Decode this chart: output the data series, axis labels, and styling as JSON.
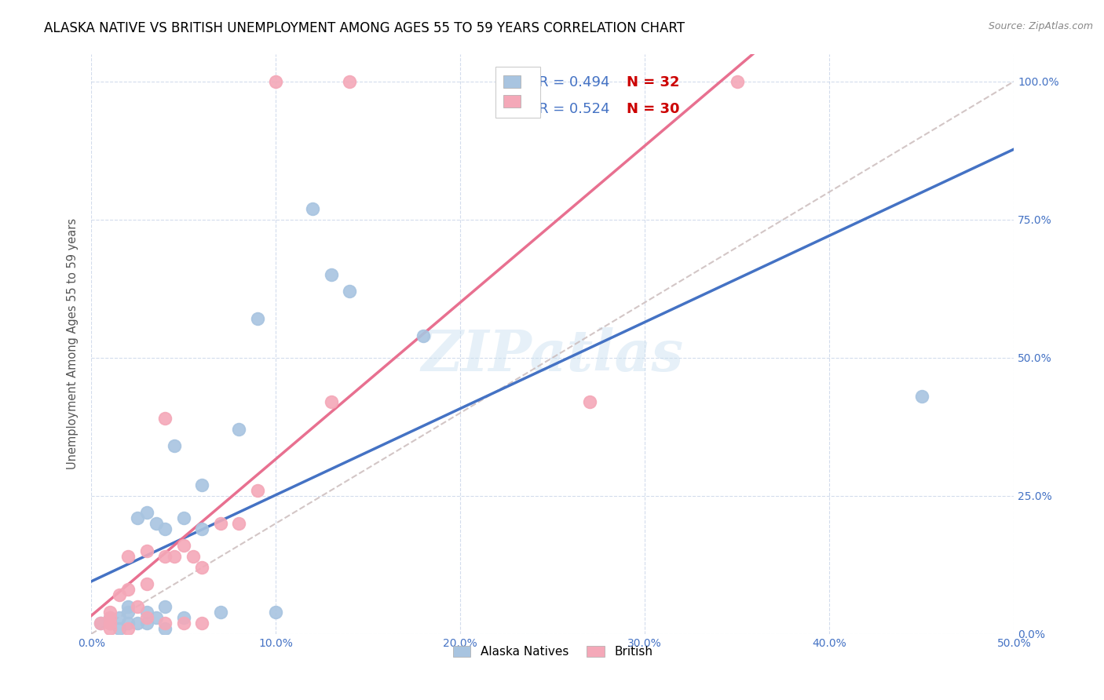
{
  "title": "ALASKA NATIVE VS BRITISH UNEMPLOYMENT AMONG AGES 55 TO 59 YEARS CORRELATION CHART",
  "source": "Source: ZipAtlas.com",
  "ylabel": "Unemployment Among Ages 55 to 59 years",
  "xlim": [
    0.0,
    0.5
  ],
  "ylim": [
    0.0,
    1.05
  ],
  "x_ticks": [
    0.0,
    0.1,
    0.2,
    0.3,
    0.4,
    0.5
  ],
  "x_tick_labels": [
    "0.0%",
    "10.0%",
    "20.0%",
    "30.0%",
    "40.0%",
    "50.0%"
  ],
  "y_ticks": [
    0.0,
    0.25,
    0.5,
    0.75,
    1.0
  ],
  "y_tick_labels": [
    "0.0%",
    "25.0%",
    "50.0%",
    "75.0%",
    "100.0%"
  ],
  "alaska_color": "#a8c4e0",
  "british_color": "#f4a8b8",
  "alaska_R": 0.494,
  "alaska_N": 32,
  "british_R": 0.524,
  "british_N": 30,
  "regression_blue": "#4472c4",
  "regression_pink": "#e87090",
  "diagonal_color": "#c8b8b8",
  "watermark": "ZIPatlas",
  "alaska_x": [
    0.005,
    0.01,
    0.01,
    0.015,
    0.015,
    0.02,
    0.02,
    0.02,
    0.025,
    0.025,
    0.03,
    0.03,
    0.03,
    0.035,
    0.035,
    0.04,
    0.04,
    0.04,
    0.045,
    0.05,
    0.05,
    0.06,
    0.06,
    0.07,
    0.08,
    0.09,
    0.1,
    0.12,
    0.13,
    0.14,
    0.18,
    0.45
  ],
  "alaska_y": [
    0.02,
    0.02,
    0.03,
    0.01,
    0.03,
    0.02,
    0.04,
    0.05,
    0.02,
    0.21,
    0.02,
    0.04,
    0.22,
    0.03,
    0.2,
    0.01,
    0.05,
    0.19,
    0.34,
    0.03,
    0.21,
    0.19,
    0.27,
    0.04,
    0.37,
    0.57,
    0.04,
    0.77,
    0.65,
    0.62,
    0.54,
    0.43
  ],
  "british_x": [
    0.005,
    0.01,
    0.01,
    0.01,
    0.01,
    0.015,
    0.02,
    0.02,
    0.02,
    0.025,
    0.03,
    0.03,
    0.03,
    0.04,
    0.04,
    0.04,
    0.045,
    0.05,
    0.05,
    0.055,
    0.06,
    0.06,
    0.07,
    0.08,
    0.09,
    0.1,
    0.13,
    0.14,
    0.27,
    0.35
  ],
  "british_y": [
    0.02,
    0.01,
    0.02,
    0.03,
    0.04,
    0.07,
    0.01,
    0.08,
    0.14,
    0.05,
    0.03,
    0.09,
    0.15,
    0.02,
    0.14,
    0.39,
    0.14,
    0.02,
    0.16,
    0.14,
    0.02,
    0.12,
    0.2,
    0.2,
    0.26,
    1.0,
    0.42,
    1.0,
    0.42,
    1.0
  ]
}
